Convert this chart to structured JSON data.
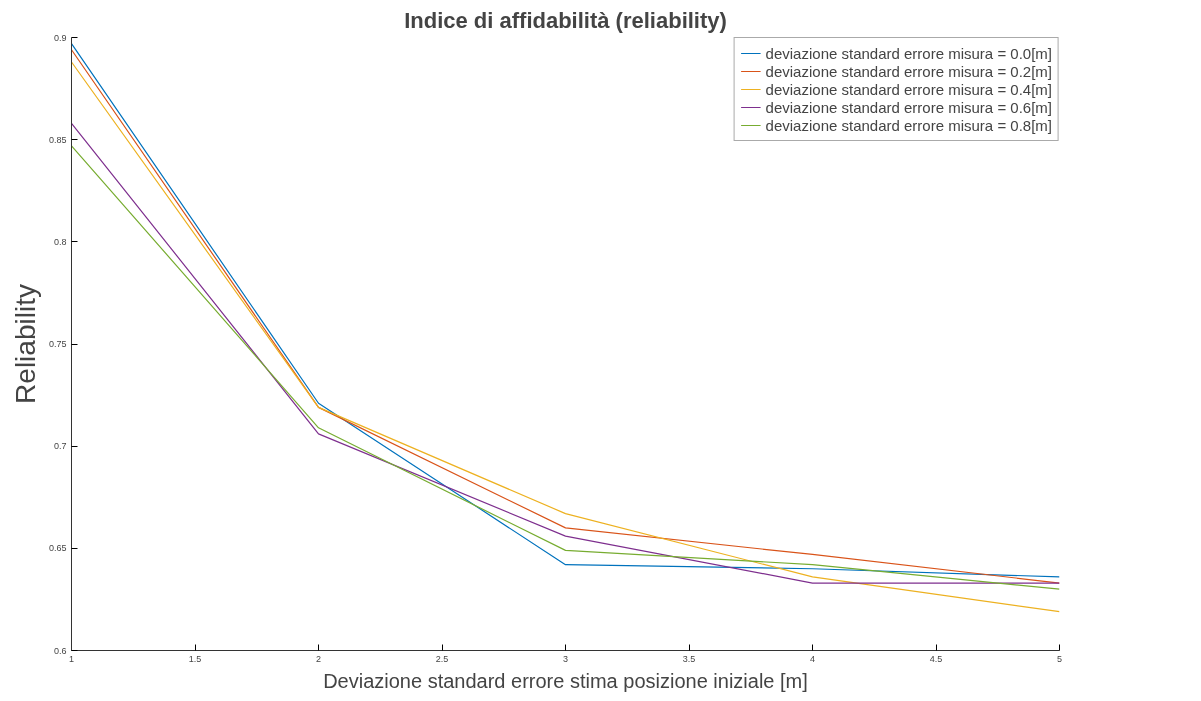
{
  "chart_data": {
    "type": "line",
    "title": "Indice di affidabilità (reliability)",
    "xlabel": "Deviazione standard errore stima posizione iniziale [m]",
    "ylabel": "Reliability",
    "x": [
      1,
      2,
      3,
      4,
      5
    ],
    "xlim": [
      1,
      5
    ],
    "xticks": [
      1,
      1.5,
      2,
      2.5,
      3,
      3.5,
      4,
      4.5,
      5
    ],
    "ylim": [
      0.6,
      0.9
    ],
    "yticks": [
      0.6,
      0.65,
      0.7,
      0.75,
      0.8,
      0.85,
      0.9
    ],
    "grid": false,
    "legend": "top right",
    "line_style": "solid",
    "marker": "none",
    "series": [
      {
        "name": "deviazione standard errore misura = 0.0[m]",
        "color": "#0072bd",
        "values": [
          0.897,
          0.721,
          0.642,
          0.64,
          0.636
        ]
      },
      {
        "name": "deviazione standard errore misura = 0.2[m]",
        "color": "#d95319",
        "values": [
          0.894,
          0.719,
          0.66,
          0.647,
          0.633
        ]
      },
      {
        "name": "deviazione standard errore misura = 0.4[m]",
        "color": "#edb120",
        "values": [
          0.888,
          0.719,
          0.667,
          0.636,
          0.619
        ]
      },
      {
        "name": "deviazione standard errore misura = 0.6[m]",
        "color": "#7e2f8e",
        "values": [
          0.858,
          0.706,
          0.656,
          0.633,
          0.633
        ]
      },
      {
        "name": "deviazione standard errore misura = 0.8[m]",
        "color": "#77ac30",
        "values": [
          0.847,
          0.709,
          0.649,
          0.642,
          0.63
        ]
      }
    ]
  }
}
